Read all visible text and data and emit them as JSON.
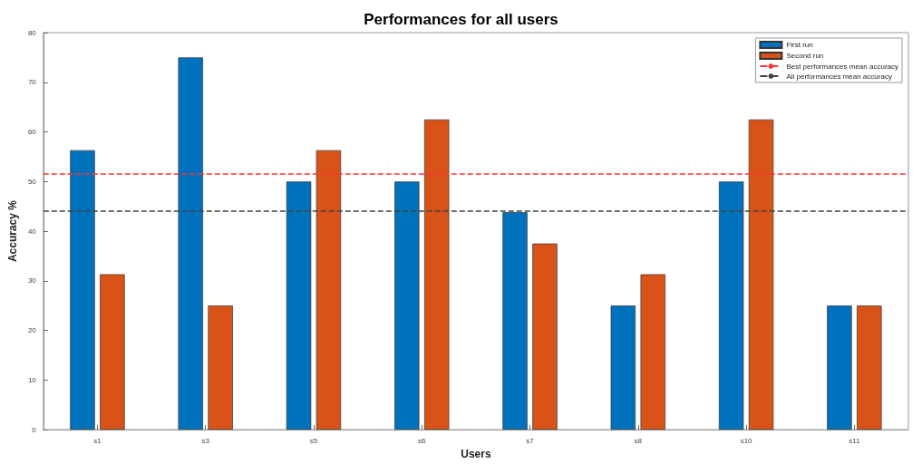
{
  "chart_data": {
    "type": "bar",
    "title": "Performances for all users",
    "xlabel": "Users",
    "ylabel": "Accuracy %",
    "categories": [
      "s1",
      "s3",
      "s5",
      "s6",
      "s7",
      "s8",
      "s10",
      "s11"
    ],
    "series": [
      {
        "name": "First run",
        "color": "#0072bd",
        "values": [
          56.3,
          75,
          50,
          50,
          43.8,
          25,
          50,
          25
        ]
      },
      {
        "name": "Second run",
        "color": "#d95319",
        "values": [
          31.3,
          25,
          56.3,
          62.5,
          37.5,
          31.3,
          62.5,
          25
        ]
      }
    ],
    "ref_lines": [
      {
        "axis": "y",
        "value": 51.6,
        "label": "Best performances mean accuracy",
        "color": "#ff3333",
        "line_style": "dashed"
      },
      {
        "axis": "y",
        "value": 44.1,
        "label": "All performances mean accuracy",
        "color": "#404040",
        "line_style": "dashed"
      }
    ],
    "ylim": [
      0,
      80
    ],
    "yticks": [
      0,
      10,
      20,
      30,
      40,
      50,
      60,
      70,
      80
    ],
    "grid": false,
    "legend": "top right"
  }
}
